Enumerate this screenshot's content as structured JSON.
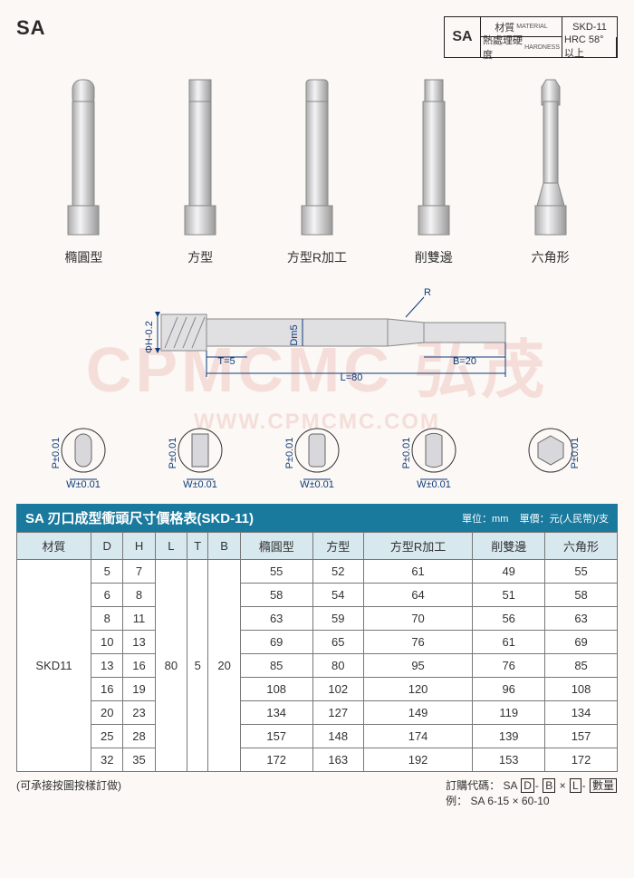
{
  "header": {
    "code": "SA",
    "matbox": {
      "sa": "SA",
      "row1_label": "材質",
      "row1_sub": "MATERIAL",
      "row1_val": "SKD-11",
      "row2_label": "熱處理硬度",
      "row2_sub": "HARDNESS",
      "row2_val": "HRC 58° 以上"
    }
  },
  "shapes": [
    "橢圓型",
    "方型",
    "方型R加工",
    "削雙邊",
    "六角形"
  ],
  "diagram": {
    "Dm5": "Dm5",
    "H": "ΦH-0.2",
    "T": "T=5",
    "L": "L=80",
    "B": "B=20",
    "R": "R",
    "ptol": "P±0.01",
    "wtol": "W±0.01"
  },
  "watermark": {
    "line1": "CPMCMC 弘茂",
    "line2": "WWW.CPMCMC.COM"
  },
  "table": {
    "title": "SA 刃口成型衝頭尺寸價格表(SKD-11)",
    "unit_dim": "單位：mm",
    "unit_price": "單價：元(人民幣)/支",
    "columns": [
      "材質",
      "D",
      "H",
      "L",
      "T",
      "B",
      "橢圓型",
      "方型",
      "方型R加工",
      "削雙邊",
      "六角形"
    ],
    "material": "SKD11",
    "L_val": "80",
    "T_val": "5",
    "B_val": "20",
    "rows": [
      {
        "D": "5",
        "H": "7",
        "v": [
          "55",
          "52",
          "61",
          "49",
          "55"
        ]
      },
      {
        "D": "6",
        "H": "8",
        "v": [
          "58",
          "54",
          "64",
          "51",
          "58"
        ]
      },
      {
        "D": "8",
        "H": "11",
        "v": [
          "63",
          "59",
          "70",
          "56",
          "63"
        ]
      },
      {
        "D": "10",
        "H": "13",
        "v": [
          "69",
          "65",
          "76",
          "61",
          "69"
        ]
      },
      {
        "D": "13",
        "H": "16",
        "v": [
          "85",
          "80",
          "95",
          "76",
          "85"
        ]
      },
      {
        "D": "16",
        "H": "19",
        "v": [
          "108",
          "102",
          "120",
          "96",
          "108"
        ]
      },
      {
        "D": "20",
        "H": "23",
        "v": [
          "134",
          "127",
          "149",
          "119",
          "134"
        ]
      },
      {
        "D": "25",
        "H": "28",
        "v": [
          "157",
          "148",
          "174",
          "139",
          "157"
        ]
      },
      {
        "D": "32",
        "H": "35",
        "v": [
          "172",
          "163",
          "192",
          "153",
          "172"
        ]
      }
    ]
  },
  "footer": {
    "note": "(可承接按圖按樣訂做)",
    "order_label": "訂購代碼：",
    "order_parts": {
      "prefix": "SA",
      "d": "D",
      "b": "B",
      "l": "L",
      "qty": "數量"
    },
    "example_label": "例：",
    "example": "SA 6-15 × 60-10"
  },
  "colors": {
    "bar": "#1a7a9e",
    "head_bg": "#d7e8ef",
    "dim": "#0d3a7a",
    "wm": "rgba(214,63,47,0.14)"
  }
}
